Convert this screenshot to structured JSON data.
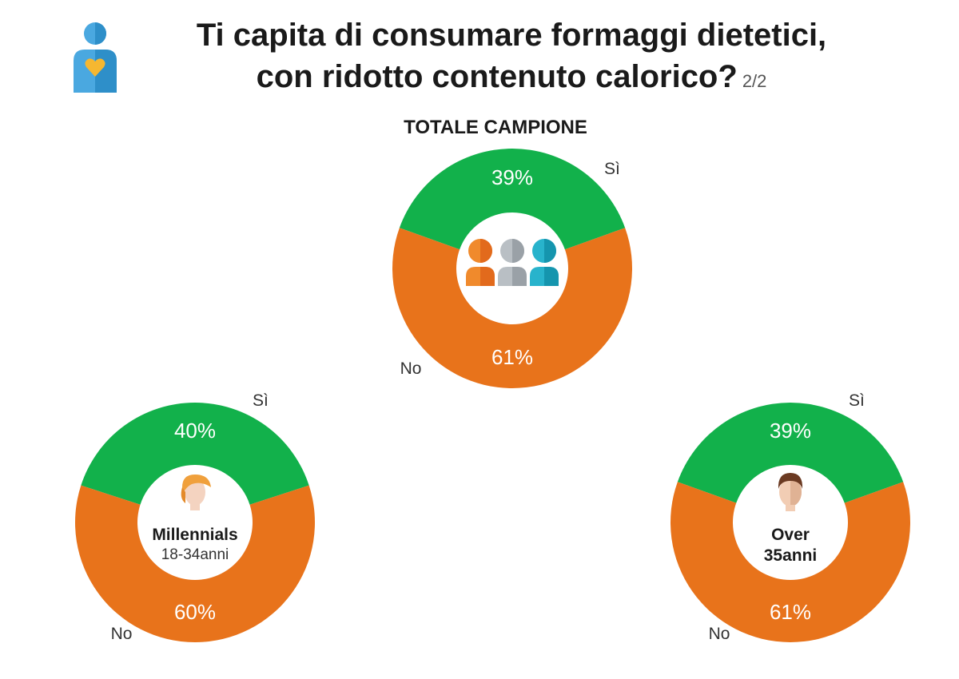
{
  "header": {
    "title_line1": "Ti capita di consumare formaggi dietetici,",
    "title_line2": "con ridotto contenuto calorico?",
    "page_indicator": "2/2",
    "icon": "person-heart-icon"
  },
  "colors": {
    "si": "#12b14b",
    "no": "#e8731b",
    "hole": "#ffffff"
  },
  "chart_data": [
    {
      "type": "pie",
      "title": "TOTALE CAMPIONE",
      "center_label": "",
      "center_sub": "",
      "icon": "group-of-people-icon",
      "slices": [
        {
          "label": "Sì",
          "value": 39
        },
        {
          "label": "No",
          "value": 61
        }
      ]
    },
    {
      "type": "pie",
      "title": "",
      "center_label": "Millennials",
      "center_sub": "18-34anni",
      "icon": "young-woman-icon",
      "slices": [
        {
          "label": "Sì",
          "value": 40
        },
        {
          "label": "No",
          "value": 60
        }
      ]
    },
    {
      "type": "pie",
      "title": "",
      "center_label": "Over",
      "center_sub": "35anni",
      "icon": "man-icon",
      "slices": [
        {
          "label": "Sì",
          "value": 39
        },
        {
          "label": "No",
          "value": 61
        }
      ]
    }
  ]
}
